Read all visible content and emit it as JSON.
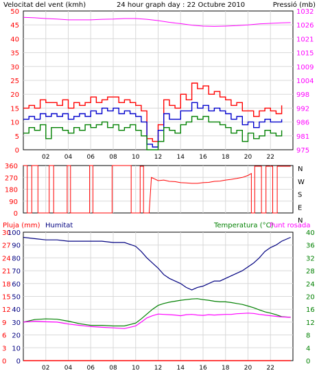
{
  "colors": {
    "wind": "#ff0000",
    "pressure": "#ff00ff",
    "humidity": "#000080",
    "temperature": "#008000",
    "dewpoint": "#ff00ff",
    "rain": "#ff0000",
    "wind_max": "#ff0000",
    "wind_avg": "#0000cc",
    "wind_min": "#008000",
    "grid": "#d8d8d8",
    "axis": "#000000"
  },
  "chart_data": [
    {
      "type": "line",
      "title": "24 hour graph day : 22 Octubre 2010",
      "ylabel": "Velocitat del vent (kmh)",
      "y2label": "Pressió (mb)",
      "x_ticks": [
        "02",
        "04",
        "06",
        "08",
        "10",
        "12",
        "14",
        "16",
        "18",
        "20",
        "22"
      ],
      "x_range_hours": [
        0,
        24
      ],
      "ylim": [
        0,
        50
      ],
      "y_ticks": [
        0,
        5,
        10,
        15,
        20,
        25,
        30,
        35,
        40,
        45,
        50
      ],
      "y2lim": [
        975,
        1030
      ],
      "y2_ticks": [
        975,
        981,
        986,
        992,
        998,
        1004,
        1009,
        1015,
        1021,
        1026,
        1032
      ],
      "grid": true,
      "series": [
        {
          "key": "wind_max",
          "axis": "left",
          "x": [
            0,
            0.5,
            1,
            1.5,
            2,
            2.5,
            3,
            3.5,
            4,
            4.5,
            5,
            5.5,
            6,
            6.5,
            7,
            7.5,
            8,
            8.5,
            9,
            9.5,
            10,
            10.5,
            11,
            11.5,
            12,
            12.5,
            13,
            13.5,
            14,
            14.5,
            15,
            15.5,
            16,
            16.5,
            17,
            17.5,
            18,
            18.5,
            19,
            19.5,
            20,
            20.5,
            21,
            21.5,
            22,
            22.5,
            23
          ],
          "values": [
            15,
            16,
            15,
            18,
            17,
            17,
            16,
            18,
            15,
            17,
            16,
            17,
            19,
            17,
            18,
            19,
            19,
            17,
            18,
            17,
            16,
            14,
            4,
            3,
            9,
            18,
            16,
            15,
            20,
            18,
            24,
            22,
            23,
            20,
            21,
            19,
            18,
            16,
            17,
            14,
            14,
            12,
            14,
            15,
            14,
            13,
            16
          ]
        },
        {
          "key": "wind_avg",
          "axis": "left",
          "x": [
            0,
            0.5,
            1,
            1.5,
            2,
            2.5,
            3,
            3.5,
            4,
            4.5,
            5,
            5.5,
            6,
            6.5,
            7,
            7.5,
            8,
            8.5,
            9,
            9.5,
            10,
            10.5,
            11,
            11.5,
            12,
            12.5,
            13,
            13.5,
            14,
            14.5,
            15,
            15.5,
            16,
            16.5,
            17,
            17.5,
            18,
            18.5,
            19,
            19.5,
            20,
            20.5,
            21,
            21.5,
            22,
            22.5,
            23
          ],
          "values": [
            11,
            12,
            11,
            13,
            12,
            13,
            12,
            13,
            11,
            12,
            13,
            12,
            14,
            13,
            15,
            14,
            15,
            13,
            14,
            13,
            12,
            10,
            2,
            1,
            7,
            13,
            11,
            11,
            14,
            14,
            17,
            15,
            16,
            14,
            15,
            14,
            13,
            11,
            12,
            9,
            10,
            8,
            10,
            11,
            10,
            10,
            11
          ]
        },
        {
          "key": "wind_min",
          "axis": "left",
          "x": [
            0,
            0.5,
            1,
            1.5,
            2,
            2.5,
            3,
            3.5,
            4,
            4.5,
            5,
            5.5,
            6,
            6.5,
            7,
            7.5,
            8,
            8.5,
            9,
            9.5,
            10,
            10.5,
            11,
            11.5,
            12,
            12.5,
            13,
            13.5,
            14,
            14.5,
            15,
            15.5,
            16,
            16.5,
            17,
            17.5,
            18,
            18.5,
            19,
            19.5,
            20,
            20.5,
            21,
            21.5,
            22,
            22.5,
            23
          ],
          "values": [
            6,
            8,
            7,
            9,
            4,
            8,
            8,
            7,
            6,
            8,
            7,
            9,
            8,
            9,
            10,
            8,
            9,
            7,
            8,
            9,
            7,
            5,
            0,
            0,
            3,
            8,
            7,
            6,
            9,
            10,
            12,
            11,
            12,
            10,
            10,
            9,
            8,
            6,
            7,
            3,
            6,
            4,
            5,
            7,
            6,
            5,
            7
          ]
        },
        {
          "key": "pressure",
          "axis": "right",
          "x": [
            0,
            1,
            2,
            3,
            4,
            5,
            6,
            7,
            8,
            9,
            10,
            11,
            12,
            13,
            14,
            15,
            16,
            17,
            18,
            19,
            20,
            21,
            22,
            23,
            23.8
          ],
          "values": [
            1027.5,
            1027.3,
            1027,
            1026.8,
            1026.5,
            1026.5,
            1026.5,
            1026.7,
            1026.8,
            1027,
            1027,
            1026.7,
            1026.2,
            1025.5,
            1025,
            1024.4,
            1024,
            1023.9,
            1024,
            1024.2,
            1024.5,
            1024.9,
            1025.1,
            1025.3,
            1025.4
          ]
        }
      ]
    },
    {
      "type": "line",
      "title": "",
      "x_range_hours": [
        0,
        24
      ],
      "ylim": [
        0,
        360
      ],
      "y_ticks": [
        0,
        90,
        180,
        270,
        360
      ],
      "direction_labels": [
        "N",
        "W",
        "S",
        "E",
        "N"
      ],
      "grid": true,
      "series": [
        {
          "key": "wind_dir",
          "x": [
            0,
            0.35,
            0.35,
            0.75,
            0.75,
            1.3,
            1.3,
            2.3,
            2.3,
            2.7,
            2.7,
            3.9,
            3.9,
            4.2,
            4.2,
            5.9,
            5.9,
            6.2,
            6.2,
            7.9,
            7.9,
            9.6,
            9.6,
            10.4,
            10.4,
            10.7,
            10.7,
            11.2,
            11.4,
            12,
            12.5,
            13,
            13.5,
            14,
            14.5,
            15,
            15.5,
            16,
            16.5,
            17,
            17.5,
            18,
            18.5,
            19,
            19.5,
            20,
            20.3,
            20.3,
            20.6,
            20.6,
            21.2,
            21.2,
            21.6,
            21.6,
            22.2,
            22.2,
            22.6,
            22.6,
            23.8
          ],
          "values": [
            360,
            360,
            0,
            0,
            360,
            360,
            0,
            0,
            360,
            360,
            0,
            0,
            360,
            360,
            0,
            0,
            360,
            360,
            0,
            0,
            360,
            360,
            0,
            0,
            355,
            355,
            0,
            0,
            270,
            245,
            250,
            240,
            238,
            230,
            228,
            225,
            225,
            230,
            232,
            240,
            242,
            250,
            255,
            262,
            270,
            285,
            300,
            0,
            0,
            355,
            355,
            0,
            0,
            355,
            355,
            0,
            0,
            355,
            355
          ]
        }
      ]
    },
    {
      "type": "line",
      "title": "",
      "labels": {
        "rain": "Pluja (mm)",
        "humidity": "Humitat",
        "temperature": "Temperatura (°C)",
        "dewpoint": "Punt rosada"
      },
      "x_ticks": [
        "02",
        "04",
        "06",
        "08",
        "10",
        "12",
        "14",
        "16",
        "18",
        "20",
        "22"
      ],
      "x_range_hours": [
        0,
        24
      ],
      "y_left_ticks": [
        0,
        10,
        20,
        30,
        40,
        50,
        60,
        70,
        80,
        90,
        100
      ],
      "y_left_lim": [
        0,
        10
      ],
      "y_mid_ticks": [
        0,
        3,
        6,
        9,
        12,
        15,
        18,
        21,
        24,
        27,
        30
      ],
      "y_mid_lim": [
        0,
        100
      ],
      "y_right_ticks": [
        0,
        4,
        8,
        12,
        16,
        20,
        24,
        28,
        32,
        36,
        40
      ],
      "y_right_lim": [
        0,
        40
      ],
      "grid": true,
      "series": [
        {
          "key": "humidity",
          "axis": "mid",
          "x": [
            0,
            1,
            2,
            3,
            4,
            5,
            6,
            7,
            8,
            9,
            10,
            10.5,
            11,
            11.5,
            12,
            12.5,
            13,
            13.5,
            14,
            14.5,
            15,
            15.5,
            16,
            16.5,
            17,
            17.5,
            18,
            18.5,
            19,
            19.5,
            20,
            20.5,
            21,
            21.5,
            22,
            22.5,
            23,
            23.8
          ],
          "values": [
            96,
            95,
            94,
            94,
            93,
            93,
            93,
            93,
            92,
            92,
            89,
            85,
            80,
            76,
            72,
            67,
            64,
            62,
            60,
            57,
            55,
            57,
            58,
            60,
            62,
            62,
            64,
            66,
            68,
            70,
            73,
            76,
            80,
            85,
            88,
            90,
            93,
            96
          ]
        },
        {
          "key": "temperature",
          "axis": "right",
          "x": [
            0,
            1,
            2,
            3,
            4,
            5,
            6,
            7,
            8,
            9,
            10,
            10.5,
            11,
            11.5,
            12,
            12.5,
            13,
            13.5,
            14,
            14.5,
            15,
            15.5,
            16,
            16.5,
            17,
            17.5,
            18,
            18.5,
            19,
            19.5,
            20,
            20.5,
            21,
            21.5,
            22,
            22.5,
            23,
            23.8
          ],
          "values": [
            12,
            12.8,
            13,
            12.9,
            12.3,
            11.5,
            11,
            11,
            10.8,
            10.8,
            11.7,
            13,
            14.5,
            16,
            17.2,
            17.8,
            18.2,
            18.5,
            18.8,
            19,
            19.2,
            19.3,
            19,
            18.8,
            18.5,
            18.3,
            18.3,
            18.1,
            17.8,
            17.5,
            17,
            16.5,
            15.8,
            15.2,
            14.8,
            14.3,
            13.7,
            13.5
          ]
        },
        {
          "key": "dewpoint",
          "axis": "right",
          "x": [
            0,
            1,
            2,
            3,
            4,
            5,
            6,
            7,
            8,
            9,
            10,
            10.5,
            11,
            11.5,
            12,
            12.5,
            13,
            13.5,
            14,
            14.5,
            15,
            15.5,
            16,
            16.5,
            17,
            17.5,
            18,
            18.5,
            19,
            19.5,
            20,
            20.5,
            21,
            21.5,
            22,
            22.5,
            23,
            23.8
          ],
          "values": [
            12,
            12.3,
            12.1,
            12,
            11.4,
            11,
            10.6,
            10.4,
            10.2,
            10,
            10.8,
            12,
            13.3,
            14,
            14.5,
            14.4,
            14.3,
            14.2,
            14,
            14.3,
            14.4,
            14.2,
            14.1,
            14.3,
            14.2,
            14.3,
            14.4,
            14.4,
            14.6,
            14.7,
            14.8,
            14.7,
            14.4,
            14.2,
            14,
            13.8,
            13.6,
            13.5
          ]
        },
        {
          "key": "rain",
          "axis": "left",
          "x": [
            0,
            23.8
          ],
          "values": [
            0,
            0
          ]
        }
      ]
    }
  ]
}
